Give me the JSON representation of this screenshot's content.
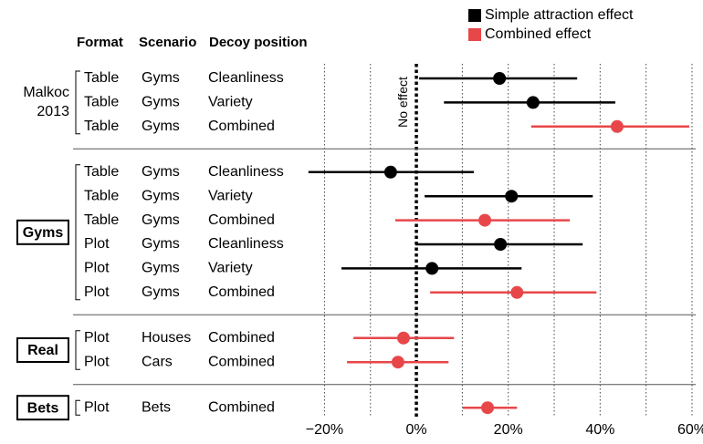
{
  "chart_data": {
    "type": "forest",
    "columns": [
      "Format",
      "Scenario",
      "Decoy position"
    ],
    "annotation": "No effect",
    "series": [
      {
        "name": "Simple attraction effect",
        "color": "#000000"
      },
      {
        "name": "Combined effect",
        "color": "#e8474a"
      }
    ],
    "xlim": [
      -24,
      61
    ],
    "xticks": [
      {
        "value": -20,
        "label": "−20%"
      },
      {
        "value": 0,
        "label": "0%"
      },
      {
        "value": 20,
        "label": "20%"
      },
      {
        "value": 40,
        "label": "40%"
      },
      {
        "value": 60,
        "label": "60%"
      }
    ],
    "xminor": [
      -10,
      10,
      30,
      50
    ],
    "grid": true,
    "groups": [
      {
        "label_lines": [
          "Malkoc",
          "2013"
        ],
        "boxed": false,
        "rows": [
          0,
          1,
          2
        ]
      },
      {
        "label_lines": [
          "Gyms"
        ],
        "boxed": true,
        "rows": [
          3,
          4,
          5,
          6,
          7,
          8
        ]
      },
      {
        "label_lines": [
          "Real"
        ],
        "boxed": true,
        "rows": [
          9,
          10
        ]
      },
      {
        "label_lines": [
          "Bets"
        ],
        "boxed": true,
        "rows": [
          11
        ]
      }
    ],
    "rows": [
      {
        "format": "Table",
        "scenario": "Gyms",
        "decoy": "Cleanliness",
        "series": 0,
        "value": 18.1,
        "lo": 0.6,
        "hi": 35
      },
      {
        "format": "Table",
        "scenario": "Gyms",
        "decoy": "Variety",
        "series": 0,
        "value": 25.4,
        "lo": 6,
        "hi": 43.3
      },
      {
        "format": "Table",
        "scenario": "Gyms",
        "decoy": "Combined",
        "series": 1,
        "value": 43.7,
        "lo": 25,
        "hi": 59.4
      },
      {
        "format": "Table",
        "scenario": "Gyms",
        "decoy": "Cleanliness",
        "series": 0,
        "value": -5.6,
        "lo": -23.5,
        "hi": 12.5
      },
      {
        "format": "Table",
        "scenario": "Gyms",
        "decoy": "Variety",
        "series": 0,
        "value": 20.7,
        "lo": 1.8,
        "hi": 38.4
      },
      {
        "format": "Table",
        "scenario": "Gyms",
        "decoy": "Combined",
        "series": 1,
        "value": 14.9,
        "lo": -4.6,
        "hi": 33.4
      },
      {
        "format": "Plot",
        "scenario": "Gyms",
        "decoy": "Cleanliness",
        "series": 0,
        "value": 18.3,
        "lo": -0.2,
        "hi": 36.2
      },
      {
        "format": "Plot",
        "scenario": "Gyms",
        "decoy": "Variety",
        "series": 0,
        "value": 3.4,
        "lo": -16.3,
        "hi": 22.9
      },
      {
        "format": "Plot",
        "scenario": "Gyms",
        "decoy": "Combined",
        "series": 1,
        "value": 21.9,
        "lo": 3,
        "hi": 39.2
      },
      {
        "format": "Plot",
        "scenario": "Houses",
        "decoy": "Combined",
        "series": 1,
        "value": -2.8,
        "lo": -13.7,
        "hi": 8.2
      },
      {
        "format": "Plot",
        "scenario": "Cars",
        "decoy": "Combined",
        "series": 1,
        "value": -4,
        "lo": -15.1,
        "hi": 7
      },
      {
        "format": "Plot",
        "scenario": "Bets",
        "decoy": "Combined",
        "series": 1,
        "value": 15.5,
        "lo": 10.1,
        "hi": 21.9
      }
    ]
  }
}
